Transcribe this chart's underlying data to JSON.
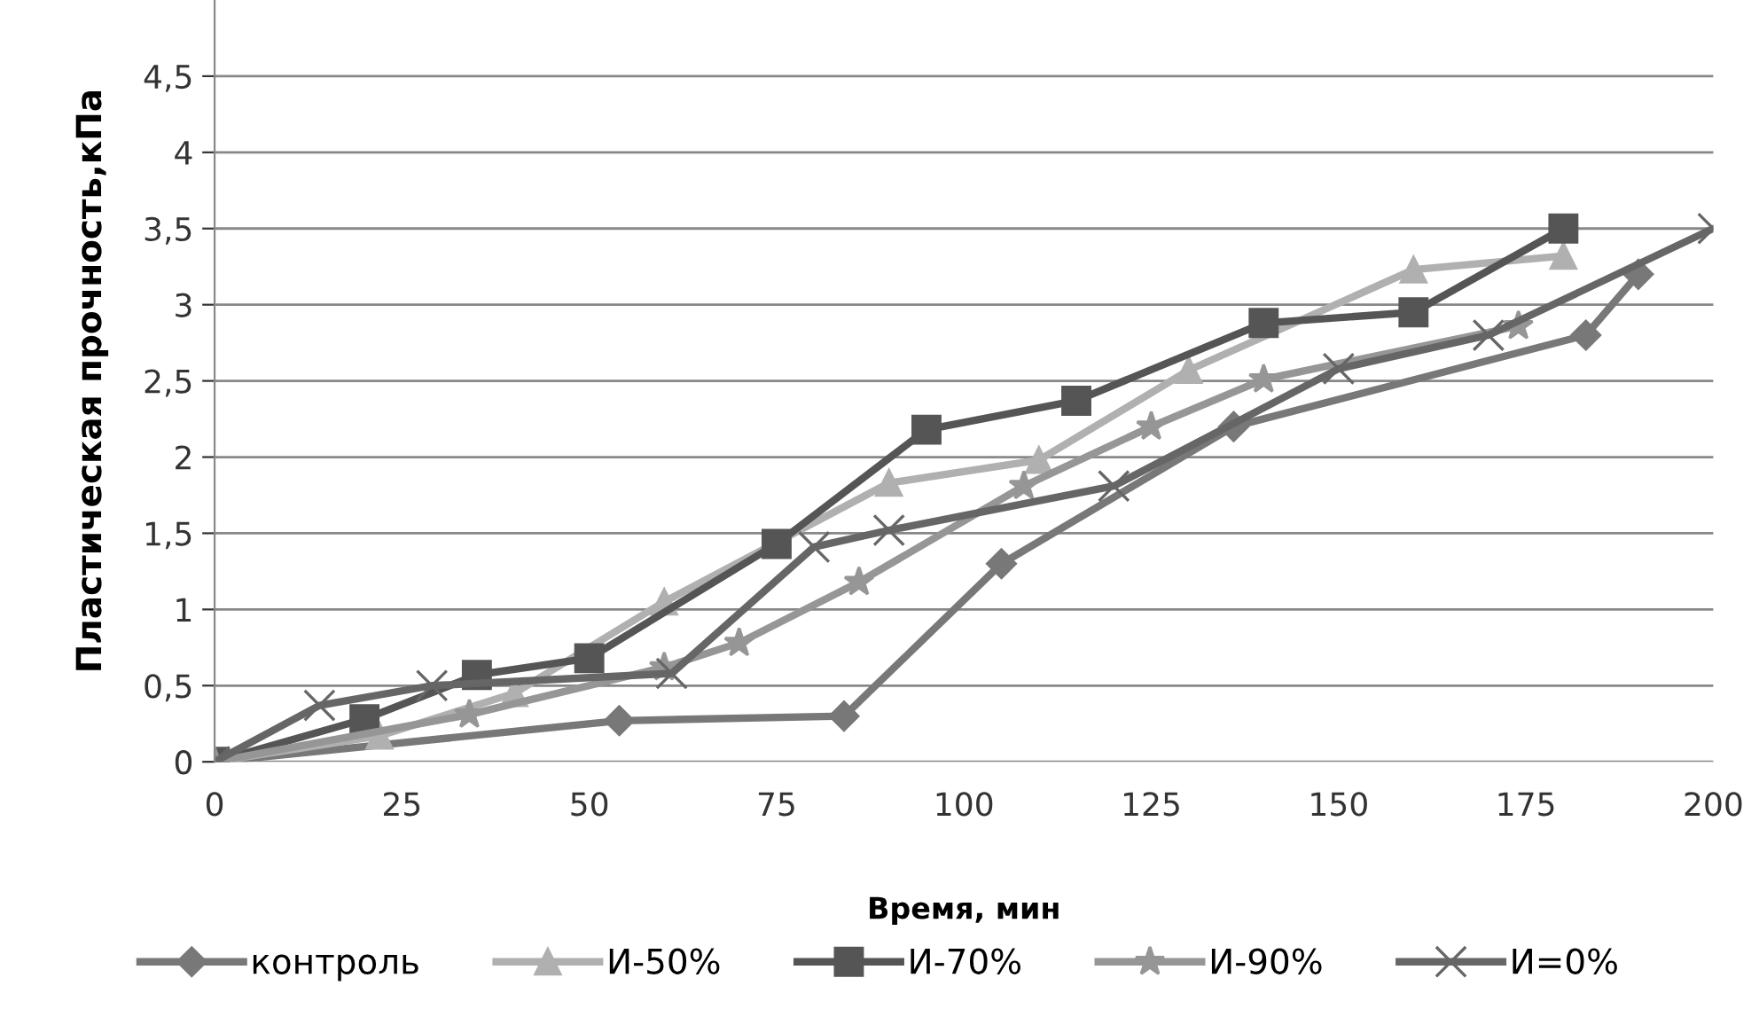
{
  "chart_data": {
    "type": "line",
    "xlabel": "Время, мин",
    "ylabel": "Пластическая прочность,кПа",
    "xlim": [
      0,
      200
    ],
    "ylim": [
      0,
      5
    ],
    "xticks": [
      0,
      25,
      50,
      75,
      100,
      125,
      150,
      175,
      200
    ],
    "yticks": [
      0,
      {
        "value": 0.5,
        "label": "0,5"
      },
      1,
      {
        "value": 1.5,
        "label": "1,5"
      },
      2,
      {
        "value": 2.5,
        "label": "2,5"
      },
      3,
      {
        "value": 3.5,
        "label": "3,5"
      },
      4,
      {
        "value": 4.5,
        "label": "4,5"
      }
    ],
    "grid": "y",
    "legend": "bottom",
    "series": [
      {
        "name": "контроль",
        "color": "#787878",
        "marker": "diamond",
        "x": [
          0,
          54,
          84,
          105,
          136,
          183,
          190
        ],
        "values": [
          0,
          0.27,
          0.3,
          1.3,
          2.2,
          2.8,
          3.2
        ]
      },
      {
        "name": "И-50%",
        "color": "#b0b0b0",
        "marker": "triangle",
        "x": [
          0,
          22,
          40,
          60,
          90,
          110,
          130,
          160,
          180
        ],
        "values": [
          0,
          0.17,
          0.45,
          1.05,
          1.83,
          1.98,
          2.57,
          3.23,
          3.32
        ]
      },
      {
        "name": "И-70%",
        "color": "#555555",
        "marker": "square",
        "x": [
          0,
          20,
          35,
          50,
          75,
          95,
          115,
          140,
          160,
          180
        ],
        "values": [
          0,
          0.28,
          0.57,
          0.68,
          1.43,
          2.18,
          2.37,
          2.88,
          2.95,
          3.5
        ]
      },
      {
        "name": "И-90%",
        "color": "#969696",
        "marker": "star",
        "x": [
          0,
          34,
          60,
          70,
          86,
          108,
          125,
          140,
          174
        ],
        "values": [
          0,
          0.31,
          0.62,
          0.78,
          1.18,
          1.81,
          2.2,
          2.51,
          2.86
        ]
      },
      {
        "name": "И=0%",
        "color": "#666666",
        "marker": "cross",
        "x": [
          0,
          14,
          29,
          61,
          80,
          90,
          120,
          150,
          170,
          200
        ],
        "values": [
          0,
          0.37,
          0.5,
          0.58,
          1.41,
          1.52,
          1.81,
          2.58,
          2.8,
          3.5
        ]
      }
    ]
  }
}
